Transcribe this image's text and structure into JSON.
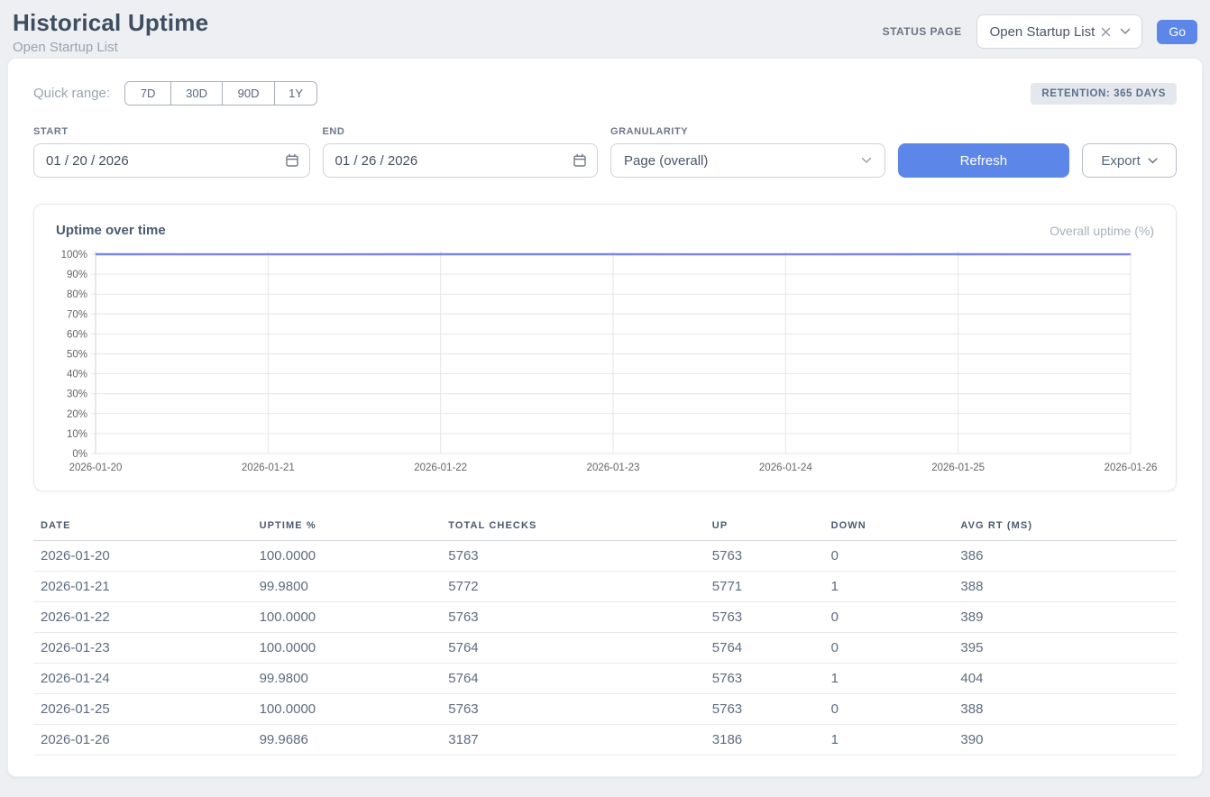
{
  "header": {
    "title": "Historical Uptime",
    "subtitle": "Open Startup List",
    "status_page_label": "STATUS PAGE",
    "status_page_value": "Open Startup List",
    "go_label": "Go"
  },
  "filters": {
    "quick_range_label": "Quick range:",
    "quick_ranges": [
      "7D",
      "30D",
      "90D",
      "1Y"
    ],
    "retention_badge": "RETENTION: 365 DAYS",
    "start_label": "START",
    "start_value": "01 / 20 / 2026",
    "end_label": "END",
    "end_value": "01 / 26 / 2026",
    "granularity_label": "GRANULARITY",
    "granularity_value": "Page (overall)",
    "refresh_label": "Refresh",
    "export_label": "Export"
  },
  "chart": {
    "title": "Uptime over time",
    "legend": "Overall uptime (%)"
  },
  "chart_data": {
    "type": "line",
    "title": "Uptime over time",
    "x": [
      "2026-01-20",
      "2026-01-21",
      "2026-01-22",
      "2026-01-23",
      "2026-01-24",
      "2026-01-25",
      "2026-01-26"
    ],
    "series": [
      {
        "name": "Overall uptime (%)",
        "values": [
          100.0,
          99.98,
          100.0,
          100.0,
          99.98,
          100.0,
          99.9686
        ]
      }
    ],
    "ylim": [
      0,
      100
    ],
    "yticks": [
      0,
      10,
      20,
      30,
      40,
      50,
      60,
      70,
      80,
      90,
      100
    ],
    "ytick_suffix": "%",
    "grid": true,
    "line_color": "#7e83ea",
    "legend_position": "top-right"
  },
  "table": {
    "columns": [
      "DATE",
      "UPTIME %",
      "TOTAL CHECKS",
      "UP",
      "DOWN",
      "AVG RT (MS)"
    ],
    "rows": [
      [
        "2026-01-20",
        "100.0000",
        "5763",
        "5763",
        "0",
        "386"
      ],
      [
        "2026-01-21",
        "99.9800",
        "5772",
        "5771",
        "1",
        "388"
      ],
      [
        "2026-01-22",
        "100.0000",
        "5763",
        "5763",
        "0",
        "389"
      ],
      [
        "2026-01-23",
        "100.0000",
        "5764",
        "5764",
        "0",
        "395"
      ],
      [
        "2026-01-24",
        "99.9800",
        "5764",
        "5763",
        "1",
        "404"
      ],
      [
        "2026-01-25",
        "100.0000",
        "5763",
        "5763",
        "0",
        "388"
      ],
      [
        "2026-01-26",
        "99.9686",
        "3187",
        "3186",
        "1",
        "390"
      ]
    ]
  },
  "colors": {
    "accent_blue": "#5c86e8",
    "line_indigo": "#7e83ea",
    "grid_gray": "#e6e6e6",
    "axis_text": "#666666"
  }
}
